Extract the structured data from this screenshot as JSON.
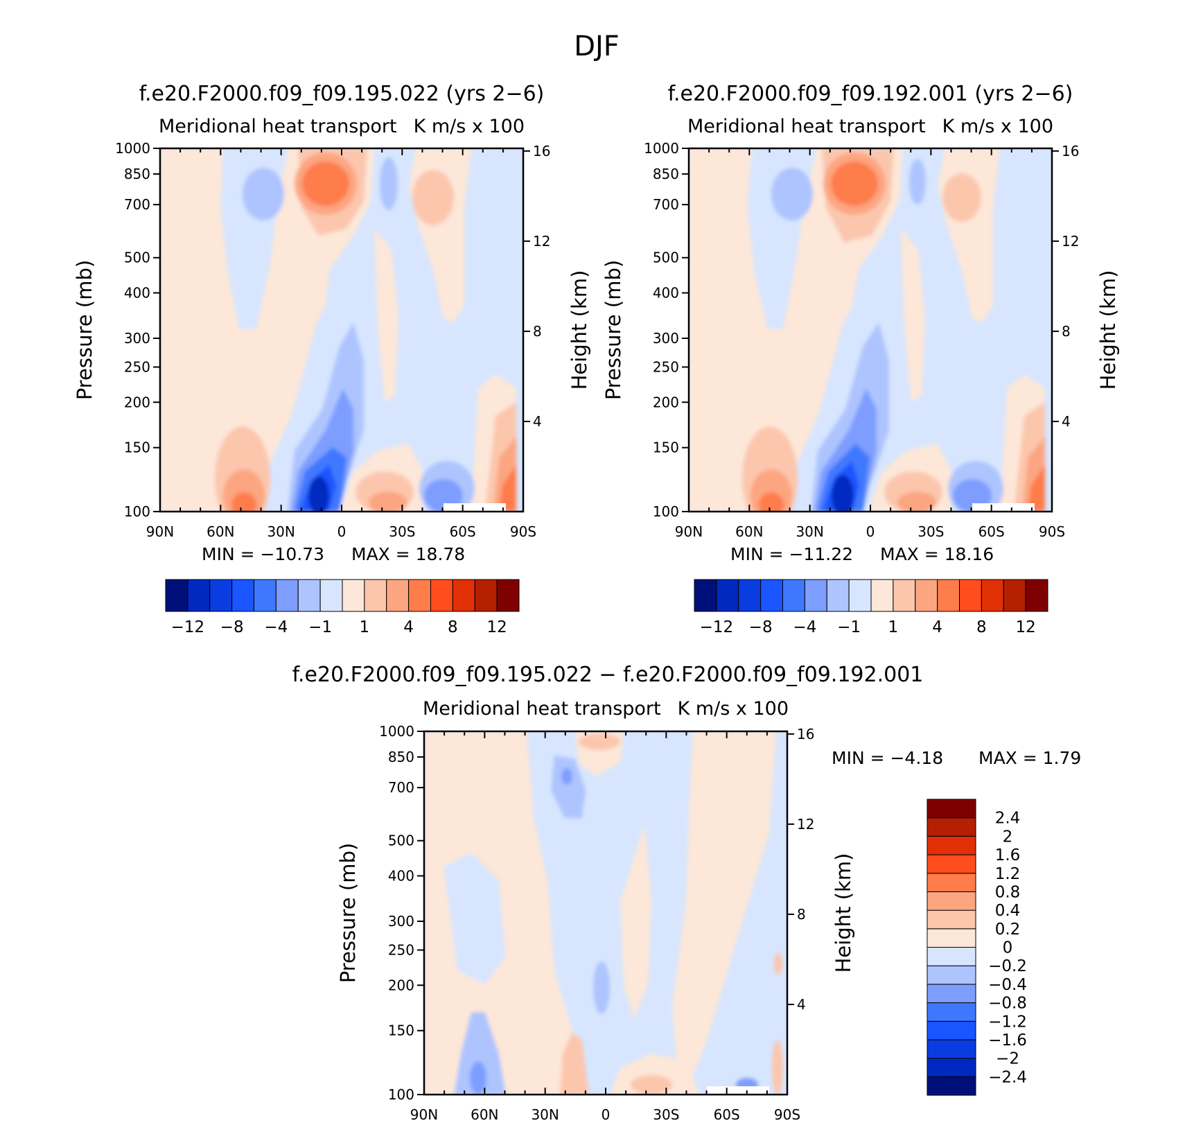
{
  "page_title": "DJF",
  "chart_data": [
    {
      "type": "heatmap",
      "title": "f.e20.F2000.f09_f09.195.022 (yrs 2−6)",
      "left_label": "Meridional heat transport",
      "right_label": "K m/s x 100",
      "xlabel": "",
      "ylabel": "Pressure (mb)",
      "ylabel_right": "Height (km)",
      "x_ticks": [
        "90N",
        "60N",
        "30N",
        "0",
        "30S",
        "60S",
        "90S"
      ],
      "y_ticks": [
        100,
        150,
        200,
        250,
        300,
        400,
        500,
        700,
        850,
        1000
      ],
      "y_right_ticks": [
        16,
        12,
        8,
        4
      ],
      "y_scale": "log",
      "ylim": [
        1000,
        100
      ],
      "min_text": "MIN = −10.73",
      "max_text": "MAX = 18.78",
      "min": -10.73,
      "max": 18.78,
      "colorbar": {
        "orientation": "horizontal",
        "colors": [
          "#00107a",
          "#0029c0",
          "#0a3de0",
          "#1a55ff",
          "#3f78ff",
          "#7d9eff",
          "#aec4ff",
          "#d7e6fe",
          "#fde7d8",
          "#fcc6ad",
          "#fca681",
          "#ff7c4b",
          "#ff4d1d",
          "#e23006",
          "#b51f02",
          "#7f0000"
        ],
        "labels": [
          "−12",
          "−8",
          "−4",
          "−1",
          "1",
          "4",
          "8",
          "12"
        ]
      }
    },
    {
      "type": "heatmap",
      "title": "f.e20.F2000.f09_f09.192.001 (yrs 2−6)",
      "left_label": "Meridional heat transport",
      "right_label": "K m/s x 100",
      "xlabel": "",
      "ylabel": "Pressure (mb)",
      "ylabel_right": "Height (km)",
      "x_ticks": [
        "90N",
        "60N",
        "30N",
        "0",
        "30S",
        "60S",
        "90S"
      ],
      "y_ticks": [
        100,
        150,
        200,
        250,
        300,
        400,
        500,
        700,
        850,
        1000
      ],
      "y_right_ticks": [
        16,
        12,
        8,
        4
      ],
      "y_scale": "log",
      "ylim": [
        1000,
        100
      ],
      "min_text": "MIN = −11.22",
      "max_text": "MAX = 18.16",
      "min": -11.22,
      "max": 18.16,
      "colorbar": {
        "orientation": "horizontal",
        "colors": [
          "#00107a",
          "#0029c0",
          "#0a3de0",
          "#1a55ff",
          "#3f78ff",
          "#7d9eff",
          "#aec4ff",
          "#d7e6fe",
          "#fde7d8",
          "#fcc6ad",
          "#fca681",
          "#ff7c4b",
          "#ff4d1d",
          "#e23006",
          "#b51f02",
          "#7f0000"
        ],
        "labels": [
          "−12",
          "−8",
          "−4",
          "−1",
          "1",
          "4",
          "8",
          "12"
        ]
      }
    },
    {
      "type": "heatmap",
      "title": "f.e20.F2000.f09_f09.195.022 − f.e20.F2000.f09_f09.192.001",
      "left_label": "Meridional heat transport",
      "right_label": "K m/s x 100",
      "xlabel": "",
      "ylabel": "Pressure (mb)",
      "ylabel_right": "Height (km)",
      "x_ticks": [
        "90N",
        "60N",
        "30N",
        "0",
        "30S",
        "60S",
        "90S"
      ],
      "y_ticks": [
        100,
        150,
        200,
        250,
        300,
        400,
        500,
        700,
        850,
        1000
      ],
      "y_right_ticks": [
        16,
        12,
        8,
        4
      ],
      "y_scale": "log",
      "ylim": [
        1000,
        100
      ],
      "min_text": "MIN = −4.18",
      "max_text": "MAX = 1.79",
      "min": -4.18,
      "max": 1.79,
      "colorbar": {
        "orientation": "vertical",
        "colors": [
          "#00107a",
          "#0029c0",
          "#0a3de0",
          "#1a55ff",
          "#3f78ff",
          "#7d9eff",
          "#aec4ff",
          "#d7e6fe",
          "#fde7d8",
          "#fcc6ad",
          "#fca681",
          "#ff7c4b",
          "#ff4d1d",
          "#e23006",
          "#b51f02",
          "#7f0000"
        ],
        "labels": [
          "2.4",
          "2",
          "1.6",
          "1.2",
          "0.8",
          "0.4",
          "0.2",
          "0",
          "−0.2",
          "−0.4",
          "−0.8",
          "−1.2",
          "−1.6",
          "−2",
          "−2.4"
        ]
      }
    }
  ]
}
